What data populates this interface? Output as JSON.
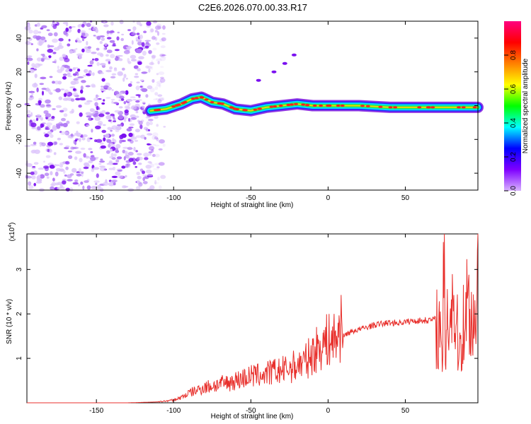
{
  "chart_data": [
    {
      "type": "heatmap",
      "title": "C2E6.2026.070.00.33.R17",
      "xlabel": "Height of straight line (km)",
      "ylabel": "Frequency (Hz)",
      "xlim": [
        -195,
        97
      ],
      "ylim": [
        -50,
        50
      ],
      "xticks": [
        -150,
        -100,
        -50,
        0,
        50
      ],
      "yticks": [
        -40,
        -20,
        0,
        20,
        40
      ],
      "colorbar": {
        "label": "Normalized spectral amplitude",
        "range": [
          0,
          1
        ],
        "ticks": [
          "0.0",
          "0.2",
          "0.4",
          "0.6",
          "0.8"
        ],
        "colors": [
          "#d9b3ff",
          "#7f00ff",
          "#0000ff",
          "#00ffff",
          "#00ff00",
          "#ffff00",
          "#ff8000",
          "#ff0000",
          "#ff0080"
        ]
      },
      "noise_region_x": [
        -195,
        -115
      ],
      "ridge": [
        {
          "x": -115,
          "f": -3
        },
        {
          "x": -105,
          "f": -2
        },
        {
          "x": -95,
          "f": 1
        },
        {
          "x": -88,
          "f": 4
        },
        {
          "x": -82,
          "f": 5
        },
        {
          "x": -75,
          "f": 2
        },
        {
          "x": -68,
          "f": 1
        },
        {
          "x": -60,
          "f": -2
        },
        {
          "x": -50,
          "f": -3
        },
        {
          "x": -40,
          "f": -1
        },
        {
          "x": -30,
          "f": 0
        },
        {
          "x": -20,
          "f": 1
        },
        {
          "x": -10,
          "f": 0
        },
        {
          "x": 0,
          "f": 0
        },
        {
          "x": 20,
          "f": 0
        },
        {
          "x": 40,
          "f": -1
        },
        {
          "x": 60,
          "f": -1
        },
        {
          "x": 80,
          "f": -1
        },
        {
          "x": 97,
          "f": -1
        }
      ],
      "chirp": [
        {
          "x": -45,
          "f": 15
        },
        {
          "x": -35,
          "f": 20
        },
        {
          "x": -28,
          "f": 25
        },
        {
          "x": -22,
          "f": 30
        }
      ]
    },
    {
      "type": "line",
      "xlabel": "Height of straight line (km)",
      "ylabel": "SNR (10 * v/v)",
      "yscale_label": "(x10",
      "yscale_exp": "4",
      "xlim": [
        -195,
        97
      ],
      "ylim": [
        0,
        3.8
      ],
      "xticks": [
        -150,
        -100,
        -50,
        0,
        50
      ],
      "yticks": [
        1,
        2,
        3
      ],
      "color": "#e8302c",
      "series": [
        {
          "x": [
            -195,
            -130,
            -110,
            -100,
            -95,
            -90,
            -85,
            -80,
            -75,
            -70,
            -65,
            -60,
            -55,
            -50,
            -45,
            -40,
            -35,
            -30,
            -25,
            -20,
            -15,
            -10,
            -5,
            0,
            5,
            8,
            9,
            10,
            12,
            15,
            20,
            25,
            30,
            35,
            40,
            45,
            50,
            55,
            60,
            65,
            70,
            72,
            74,
            75,
            76,
            77,
            78,
            80,
            85,
            90,
            95,
            97
          ],
          "y": [
            0,
            0,
            0.02,
            0.06,
            0.12,
            0.22,
            0.28,
            0.35,
            0.38,
            0.42,
            0.45,
            0.5,
            0.55,
            0.6,
            0.62,
            0.65,
            0.7,
            0.72,
            0.78,
            0.85,
            0.92,
            1.1,
            1.3,
            1.4,
            1.45,
            1.6,
            2.3,
            1.5,
            1.55,
            1.6,
            1.65,
            1.7,
            1.75,
            1.78,
            1.8,
            1.8,
            1.82,
            1.84,
            1.85,
            1.86,
            1.88,
            1.6,
            0.8,
            3.8,
            0.3,
            3.0,
            1.5,
            2.5,
            1.2,
            2.3,
            1.7,
            3.4
          ]
        }
      ]
    }
  ]
}
